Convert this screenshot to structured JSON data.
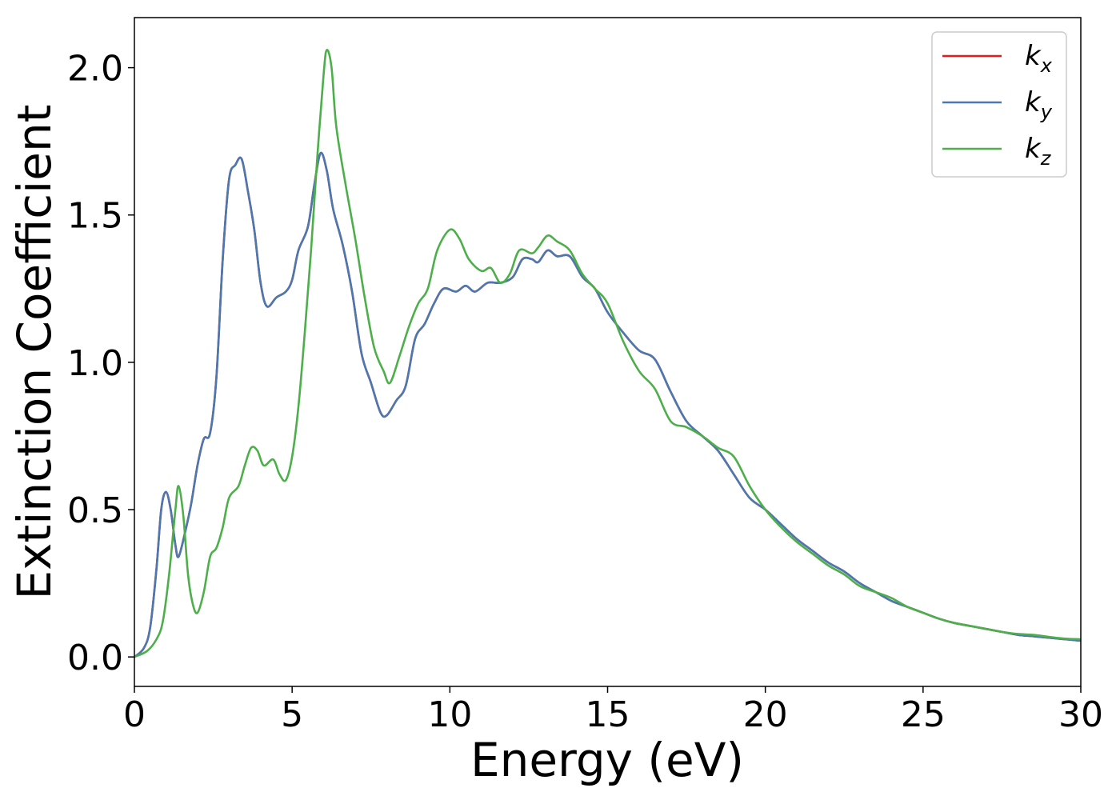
{
  "chart_data": {
    "type": "line",
    "xlabel": "Energy (eV)",
    "ylabel": "Extinction Coefficient",
    "xlim": [
      0,
      30
    ],
    "ylim": [
      -0.1,
      2.17
    ],
    "xticks": [
      0,
      5,
      10,
      15,
      20,
      25,
      30
    ],
    "xtick_labels": [
      "0",
      "5",
      "10",
      "15",
      "20",
      "25",
      "30"
    ],
    "yticks": [
      0.0,
      0.5,
      1.0,
      1.5,
      2.0
    ],
    "ytick_labels": [
      "0.0",
      "0.5",
      "1.0",
      "1.5",
      "2.0"
    ],
    "grid": false,
    "legend_position": "top-right",
    "series": [
      {
        "name": "k_x",
        "label_base": "k",
        "label_sub": "x",
        "color": "#e41a1c",
        "points": [
          [
            0,
            0
          ],
          [
            0.3,
            0.03
          ],
          [
            0.5,
            0.1
          ],
          [
            0.7,
            0.3
          ],
          [
            0.85,
            0.5
          ],
          [
            1.0,
            0.56
          ],
          [
            1.15,
            0.5
          ],
          [
            1.3,
            0.38
          ],
          [
            1.4,
            0.34
          ],
          [
            1.6,
            0.42
          ],
          [
            1.8,
            0.52
          ],
          [
            2.0,
            0.65
          ],
          [
            2.2,
            0.74
          ],
          [
            2.4,
            0.76
          ],
          [
            2.6,
            0.95
          ],
          [
            2.8,
            1.35
          ],
          [
            3.0,
            1.62
          ],
          [
            3.2,
            1.67
          ],
          [
            3.4,
            1.69
          ],
          [
            3.6,
            1.58
          ],
          [
            3.8,
            1.45
          ],
          [
            4.0,
            1.27
          ],
          [
            4.2,
            1.19
          ],
          [
            4.5,
            1.22
          ],
          [
            4.8,
            1.24
          ],
          [
            5.0,
            1.28
          ],
          [
            5.2,
            1.38
          ],
          [
            5.5,
            1.46
          ],
          [
            5.7,
            1.6
          ],
          [
            5.9,
            1.71
          ],
          [
            6.1,
            1.65
          ],
          [
            6.3,
            1.52
          ],
          [
            6.6,
            1.4
          ],
          [
            6.9,
            1.24
          ],
          [
            7.2,
            1.03
          ],
          [
            7.5,
            0.93
          ],
          [
            7.8,
            0.83
          ],
          [
            8.0,
            0.82
          ],
          [
            8.3,
            0.87
          ],
          [
            8.6,
            0.92
          ],
          [
            8.9,
            1.08
          ],
          [
            9.2,
            1.13
          ],
          [
            9.5,
            1.2
          ],
          [
            9.8,
            1.25
          ],
          [
            10.2,
            1.24
          ],
          [
            10.5,
            1.26
          ],
          [
            10.8,
            1.24
          ],
          [
            11.2,
            1.27
          ],
          [
            11.6,
            1.27
          ],
          [
            12.0,
            1.29
          ],
          [
            12.3,
            1.35
          ],
          [
            12.6,
            1.35
          ],
          [
            12.8,
            1.34
          ],
          [
            13.1,
            1.38
          ],
          [
            13.4,
            1.36
          ],
          [
            13.8,
            1.36
          ],
          [
            14.2,
            1.29
          ],
          [
            14.6,
            1.25
          ],
          [
            15.0,
            1.17
          ],
          [
            15.5,
            1.1
          ],
          [
            16.0,
            1.04
          ],
          [
            16.5,
            1.01
          ],
          [
            17.0,
            0.9
          ],
          [
            17.5,
            0.8
          ],
          [
            18.0,
            0.75
          ],
          [
            18.5,
            0.7
          ],
          [
            19.0,
            0.62
          ],
          [
            19.5,
            0.54
          ],
          [
            20.0,
            0.5
          ],
          [
            20.5,
            0.45
          ],
          [
            21.0,
            0.4
          ],
          [
            21.5,
            0.36
          ],
          [
            22.0,
            0.32
          ],
          [
            22.5,
            0.29
          ],
          [
            23.0,
            0.25
          ],
          [
            23.5,
            0.22
          ],
          [
            24.0,
            0.19
          ],
          [
            24.5,
            0.17
          ],
          [
            25.0,
            0.15
          ],
          [
            25.5,
            0.13
          ],
          [
            26.0,
            0.115
          ],
          [
            26.5,
            0.105
          ],
          [
            27.0,
            0.095
          ],
          [
            27.5,
            0.085
          ],
          [
            28.0,
            0.075
          ],
          [
            28.5,
            0.07
          ],
          [
            29.0,
            0.065
          ],
          [
            29.5,
            0.06
          ],
          [
            30.0,
            0.055
          ]
        ]
      },
      {
        "name": "k_y",
        "label_base": "k",
        "label_sub": "y",
        "color": "#4a78b0",
        "points": [
          [
            0,
            0
          ],
          [
            0.3,
            0.03
          ],
          [
            0.5,
            0.1
          ],
          [
            0.7,
            0.3
          ],
          [
            0.85,
            0.5
          ],
          [
            1.0,
            0.56
          ],
          [
            1.15,
            0.5
          ],
          [
            1.3,
            0.38
          ],
          [
            1.4,
            0.34
          ],
          [
            1.6,
            0.42
          ],
          [
            1.8,
            0.52
          ],
          [
            2.0,
            0.65
          ],
          [
            2.2,
            0.74
          ],
          [
            2.4,
            0.76
          ],
          [
            2.6,
            0.95
          ],
          [
            2.8,
            1.35
          ],
          [
            3.0,
            1.62
          ],
          [
            3.2,
            1.67
          ],
          [
            3.4,
            1.69
          ],
          [
            3.6,
            1.58
          ],
          [
            3.8,
            1.45
          ],
          [
            4.0,
            1.27
          ],
          [
            4.2,
            1.19
          ],
          [
            4.5,
            1.22
          ],
          [
            4.8,
            1.24
          ],
          [
            5.0,
            1.28
          ],
          [
            5.2,
            1.38
          ],
          [
            5.5,
            1.46
          ],
          [
            5.7,
            1.6
          ],
          [
            5.9,
            1.71
          ],
          [
            6.1,
            1.65
          ],
          [
            6.3,
            1.52
          ],
          [
            6.6,
            1.4
          ],
          [
            6.9,
            1.24
          ],
          [
            7.2,
            1.03
          ],
          [
            7.5,
            0.93
          ],
          [
            7.8,
            0.83
          ],
          [
            8.0,
            0.82
          ],
          [
            8.3,
            0.87
          ],
          [
            8.6,
            0.92
          ],
          [
            8.9,
            1.08
          ],
          [
            9.2,
            1.13
          ],
          [
            9.5,
            1.2
          ],
          [
            9.8,
            1.25
          ],
          [
            10.2,
            1.24
          ],
          [
            10.5,
            1.26
          ],
          [
            10.8,
            1.24
          ],
          [
            11.2,
            1.27
          ],
          [
            11.6,
            1.27
          ],
          [
            12.0,
            1.29
          ],
          [
            12.3,
            1.35
          ],
          [
            12.6,
            1.35
          ],
          [
            12.8,
            1.34
          ],
          [
            13.1,
            1.38
          ],
          [
            13.4,
            1.36
          ],
          [
            13.8,
            1.36
          ],
          [
            14.2,
            1.29
          ],
          [
            14.6,
            1.25
          ],
          [
            15.0,
            1.17
          ],
          [
            15.5,
            1.1
          ],
          [
            16.0,
            1.04
          ],
          [
            16.5,
            1.01
          ],
          [
            17.0,
            0.9
          ],
          [
            17.5,
            0.8
          ],
          [
            18.0,
            0.75
          ],
          [
            18.5,
            0.7
          ],
          [
            19.0,
            0.62
          ],
          [
            19.5,
            0.54
          ],
          [
            20.0,
            0.5
          ],
          [
            20.5,
            0.45
          ],
          [
            21.0,
            0.4
          ],
          [
            21.5,
            0.36
          ],
          [
            22.0,
            0.32
          ],
          [
            22.5,
            0.29
          ],
          [
            23.0,
            0.25
          ],
          [
            23.5,
            0.22
          ],
          [
            24.0,
            0.19
          ],
          [
            24.5,
            0.17
          ],
          [
            25.0,
            0.15
          ],
          [
            25.5,
            0.13
          ],
          [
            26.0,
            0.115
          ],
          [
            26.5,
            0.105
          ],
          [
            27.0,
            0.095
          ],
          [
            27.5,
            0.085
          ],
          [
            28.0,
            0.075
          ],
          [
            28.5,
            0.07
          ],
          [
            29.0,
            0.065
          ],
          [
            29.5,
            0.06
          ],
          [
            30.0,
            0.055
          ]
        ]
      },
      {
        "name": "k_z",
        "label_base": "k",
        "label_sub": "z",
        "color": "#4daf4a",
        "points": [
          [
            0,
            0
          ],
          [
            0.4,
            0.02
          ],
          [
            0.7,
            0.06
          ],
          [
            0.9,
            0.12
          ],
          [
            1.1,
            0.28
          ],
          [
            1.3,
            0.5
          ],
          [
            1.4,
            0.58
          ],
          [
            1.55,
            0.48
          ],
          [
            1.7,
            0.28
          ],
          [
            1.85,
            0.18
          ],
          [
            2.0,
            0.15
          ],
          [
            2.2,
            0.22
          ],
          [
            2.4,
            0.34
          ],
          [
            2.6,
            0.37
          ],
          [
            2.8,
            0.44
          ],
          [
            3.0,
            0.54
          ],
          [
            3.3,
            0.58
          ],
          [
            3.5,
            0.65
          ],
          [
            3.7,
            0.71
          ],
          [
            3.9,
            0.7
          ],
          [
            4.1,
            0.65
          ],
          [
            4.4,
            0.67
          ],
          [
            4.6,
            0.62
          ],
          [
            4.8,
            0.6
          ],
          [
            5.0,
            0.68
          ],
          [
            5.2,
            0.85
          ],
          [
            5.4,
            1.1
          ],
          [
            5.6,
            1.38
          ],
          [
            5.8,
            1.7
          ],
          [
            6.0,
            1.98
          ],
          [
            6.1,
            2.06
          ],
          [
            6.25,
            2.0
          ],
          [
            6.4,
            1.8
          ],
          [
            6.7,
            1.6
          ],
          [
            7.0,
            1.42
          ],
          [
            7.3,
            1.22
          ],
          [
            7.6,
            1.05
          ],
          [
            7.9,
            0.97
          ],
          [
            8.1,
            0.93
          ],
          [
            8.4,
            1.02
          ],
          [
            8.7,
            1.12
          ],
          [
            9.0,
            1.2
          ],
          [
            9.3,
            1.25
          ],
          [
            9.6,
            1.38
          ],
          [
            10.0,
            1.45
          ],
          [
            10.3,
            1.42
          ],
          [
            10.6,
            1.35
          ],
          [
            11.0,
            1.31
          ],
          [
            11.3,
            1.32
          ],
          [
            11.6,
            1.27
          ],
          [
            11.9,
            1.3
          ],
          [
            12.2,
            1.38
          ],
          [
            12.6,
            1.37
          ],
          [
            12.8,
            1.39
          ],
          [
            13.1,
            1.43
          ],
          [
            13.4,
            1.41
          ],
          [
            13.8,
            1.38
          ],
          [
            14.2,
            1.3
          ],
          [
            14.6,
            1.25
          ],
          [
            15.0,
            1.2
          ],
          [
            15.5,
            1.07
          ],
          [
            16.0,
            0.97
          ],
          [
            16.5,
            0.91
          ],
          [
            17.0,
            0.8
          ],
          [
            17.5,
            0.78
          ],
          [
            18.0,
            0.75
          ],
          [
            18.5,
            0.71
          ],
          [
            19.0,
            0.68
          ],
          [
            19.5,
            0.58
          ],
          [
            20.0,
            0.5
          ],
          [
            20.5,
            0.44
          ],
          [
            21.0,
            0.39
          ],
          [
            21.5,
            0.35
          ],
          [
            22.0,
            0.31
          ],
          [
            22.5,
            0.28
          ],
          [
            23.0,
            0.24
          ],
          [
            23.5,
            0.22
          ],
          [
            24.0,
            0.2
          ],
          [
            24.5,
            0.17
          ],
          [
            25.0,
            0.15
          ],
          [
            25.5,
            0.13
          ],
          [
            26.0,
            0.115
          ],
          [
            26.5,
            0.105
          ],
          [
            27.0,
            0.095
          ],
          [
            27.5,
            0.085
          ],
          [
            28.0,
            0.078
          ],
          [
            28.5,
            0.075
          ],
          [
            29.0,
            0.068
          ],
          [
            29.5,
            0.062
          ],
          [
            30.0,
            0.06
          ]
        ]
      }
    ]
  }
}
